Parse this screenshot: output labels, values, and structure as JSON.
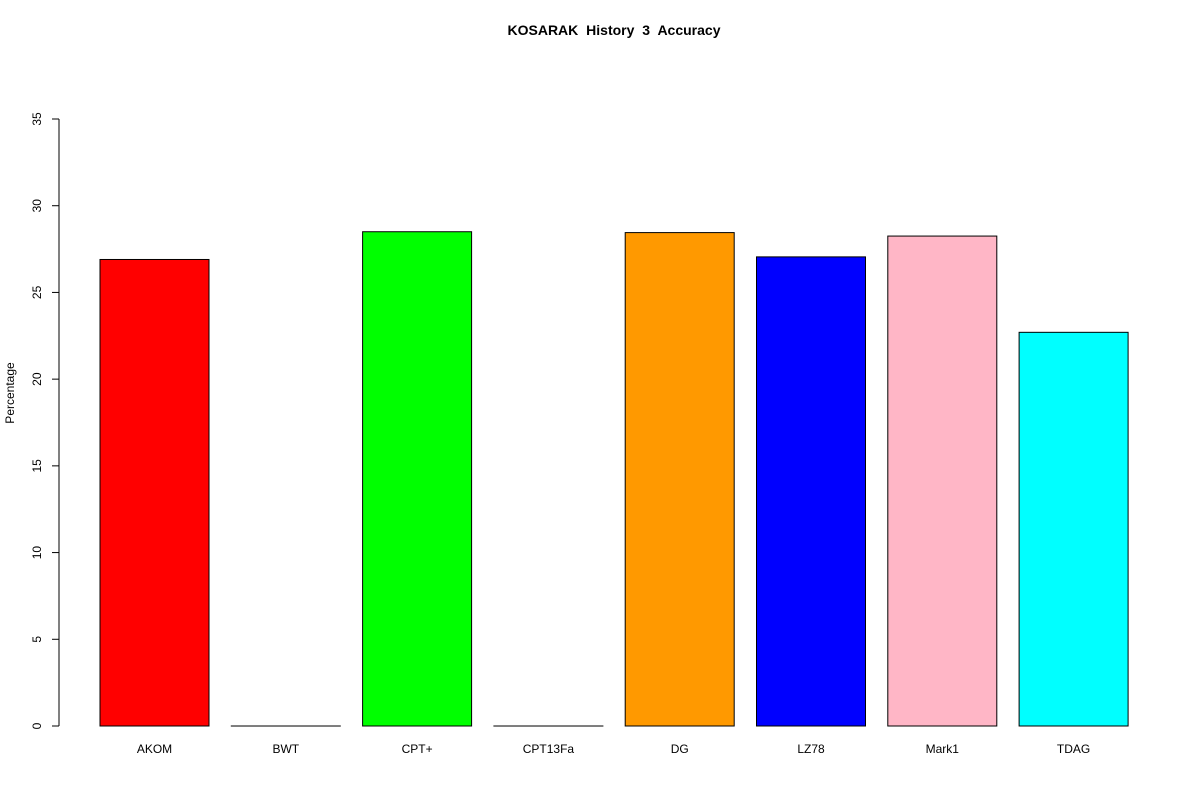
{
  "chart_data": {
    "type": "bar",
    "title": "KOSARAK  History  3  Accuracy",
    "xlabel": "",
    "ylabel": "Percentage",
    "categories": [
      "AKOM",
      "BWT",
      "CPT+",
      "CPT13Fa",
      "DG",
      "LZ78",
      "Mark1",
      "TDAG"
    ],
    "values": [
      26.9,
      0,
      28.5,
      0,
      28.45,
      27.05,
      28.25,
      22.7
    ],
    "colors": [
      "#ff0000",
      "#ffffff",
      "#00ff00",
      "#ffffff",
      "#ff9900",
      "#0000ff",
      "#ffb6c6",
      "#00ffff"
    ],
    "ylim": [
      0,
      35
    ],
    "yticks": [
      "0",
      "5",
      "10",
      "15",
      "20",
      "25",
      "30",
      "35"
    ],
    "grid": false,
    "legend": "none"
  }
}
